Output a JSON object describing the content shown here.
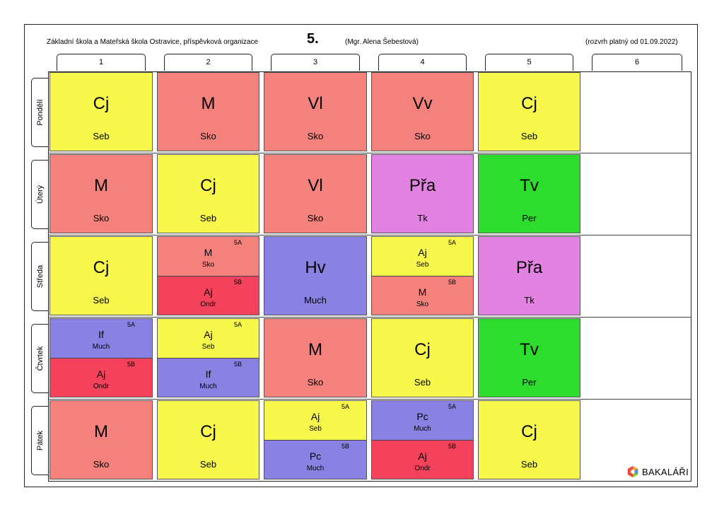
{
  "header": {
    "school": "Základní škola a Mateřská škola Ostravice, příspěvková organizace",
    "class_name": "5.",
    "teacher": "(Mgr. Alena Šebestová)",
    "validity": "(rozvrh platný od 01.09.2022)"
  },
  "colors": {
    "Cj": "#f8f84c",
    "M": "#f5817d",
    "Vl": "#f5817d",
    "Vv": "#f5817d",
    "Pra": "#e283e2",
    "Tv": "#2edc2e",
    "Hv": "#8a82e2",
    "If": "#8a82e2",
    "Pc": "#8a82e2",
    "Aj_yellow": "#f8f84c",
    "Aj_red": "#f4425c"
  },
  "periods": [
    "1",
    "2",
    "3",
    "4",
    "5",
    "6"
  ],
  "days": [
    {
      "label": "Pondělí",
      "lessons": [
        {
          "subject": "Cj",
          "teacher": "Seb",
          "color": "#f8f84c"
        },
        {
          "subject": "M",
          "teacher": "Sko",
          "color": "#f5817d"
        },
        {
          "subject": "Vl",
          "teacher": "Sko",
          "color": "#f5817d"
        },
        {
          "subject": "Vv",
          "teacher": "Sko",
          "color": "#f5817d"
        },
        {
          "subject": "Cj",
          "teacher": "Seb",
          "color": "#f8f84c"
        }
      ]
    },
    {
      "label": "Úterý",
      "lessons": [
        {
          "subject": "M",
          "teacher": "Sko",
          "color": "#f5817d"
        },
        {
          "subject": "Cj",
          "teacher": "Seb",
          "color": "#f8f84c"
        },
        {
          "subject": "Vl",
          "teacher": "Sko",
          "color": "#f5817d"
        },
        {
          "subject": "Přa",
          "teacher": "Tk",
          "color": "#e283e2"
        },
        {
          "subject": "Tv",
          "teacher": "Per",
          "color": "#2edc2e"
        }
      ]
    },
    {
      "label": "Středa",
      "lessons": [
        {
          "subject": "Cj",
          "teacher": "Seb",
          "color": "#f8f84c"
        },
        {
          "groups": [
            {
              "group": "5A",
              "subject": "M",
              "teacher": "Sko",
              "color": "#f5817d"
            },
            {
              "group": "5B",
              "subject": "Aj",
              "teacher": "Ondr",
              "color": "#f4425c"
            }
          ]
        },
        {
          "subject": "Hv",
          "teacher": "Much",
          "color": "#8a82e2"
        },
        {
          "groups": [
            {
              "group": "5A",
              "subject": "Aj",
              "teacher": "Seb",
              "color": "#f8f84c"
            },
            {
              "group": "5B",
              "subject": "M",
              "teacher": "Sko",
              "color": "#f5817d"
            }
          ]
        },
        {
          "subject": "Přa",
          "teacher": "Tk",
          "color": "#e283e2"
        }
      ]
    },
    {
      "label": "Čtvrtek",
      "lessons": [
        {
          "groups": [
            {
              "group": "5A",
              "subject": "If",
              "teacher": "Much",
              "color": "#8a82e2"
            },
            {
              "group": "5B",
              "subject": "Aj",
              "teacher": "Ondr",
              "color": "#f4425c"
            }
          ]
        },
        {
          "groups": [
            {
              "group": "5A",
              "subject": "Aj",
              "teacher": "Seb",
              "color": "#f8f84c"
            },
            {
              "group": "5B",
              "subject": "If",
              "teacher": "Much",
              "color": "#8a82e2"
            }
          ]
        },
        {
          "subject": "M",
          "teacher": "Sko",
          "color": "#f5817d"
        },
        {
          "subject": "Cj",
          "teacher": "Seb",
          "color": "#f8f84c"
        },
        {
          "subject": "Tv",
          "teacher": "Per",
          "color": "#2edc2e"
        }
      ]
    },
    {
      "label": "Pátek",
      "lessons": [
        {
          "subject": "M",
          "teacher": "Sko",
          "color": "#f5817d"
        },
        {
          "subject": "Cj",
          "teacher": "Seb",
          "color": "#f8f84c"
        },
        {
          "groups": [
            {
              "group": "5A",
              "subject": "Aj",
              "teacher": "Seb",
              "color": "#f8f84c"
            },
            {
              "group": "5B",
              "subject": "Pc",
              "teacher": "Much",
              "color": "#8a82e2"
            }
          ]
        },
        {
          "groups": [
            {
              "group": "5A",
              "subject": "Pc",
              "teacher": "Much",
              "color": "#8a82e2"
            },
            {
              "group": "5B",
              "subject": "Aj",
              "teacher": "Ondr",
              "color": "#f4425c"
            }
          ]
        },
        {
          "subject": "Cj",
          "teacher": "Seb",
          "color": "#f8f84c"
        }
      ]
    }
  ],
  "logo": {
    "text": "BAKALÁŘI",
    "icon": "bakalari-logo-icon"
  }
}
